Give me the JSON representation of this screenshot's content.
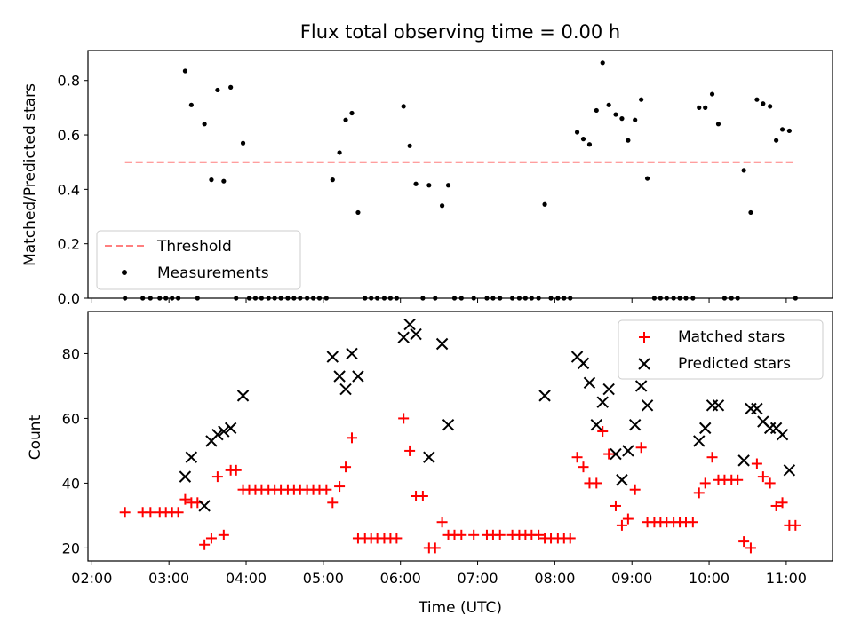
{
  "chart_data": [
    {
      "type": "scatter",
      "title": "Flux total observing time = 0.00 h",
      "xlabel": "",
      "ylabel": "Matched/Predicted stars",
      "xlim_hours": [
        1.95,
        11.6
      ],
      "ylim": [
        0,
        0.91
      ],
      "yticks": [
        0.0,
        0.2,
        0.4,
        0.6,
        0.8
      ],
      "ytick_labels": [
        "0.0",
        "0.2",
        "0.4",
        "0.6",
        "0.8"
      ],
      "legend": {
        "placement": "bottom-left",
        "entries": [
          "Threshold",
          "Measurements"
        ]
      },
      "threshold": {
        "name": "Threshold",
        "value": 0.5,
        "x_range_hours": [
          2.43,
          11.1
        ],
        "color": "#ff7f7f"
      },
      "series": [
        {
          "name": "Measurements",
          "color": "#000000",
          "points": [
            [
              2.43,
              0
            ],
            [
              2.66,
              0
            ],
            [
              2.76,
              0
            ],
            [
              2.88,
              0
            ],
            [
              2.96,
              0
            ],
            [
              3.04,
              0
            ],
            [
              3.12,
              0
            ],
            [
              3.21,
              0.835
            ],
            [
              3.29,
              0.71
            ],
            [
              3.46,
              0.64
            ],
            [
              3.55,
              0.435
            ],
            [
              3.63,
              0.765
            ],
            [
              3.71,
              0.43
            ],
            [
              3.8,
              0.775
            ],
            [
              3.96,
              0.57
            ],
            [
              3.37,
              0
            ],
            [
              3.87,
              0
            ],
            [
              4.04,
              0
            ],
            [
              4.12,
              0
            ],
            [
              4.2,
              0
            ],
            [
              4.29,
              0
            ],
            [
              4.37,
              0
            ],
            [
              4.45,
              0
            ],
            [
              4.54,
              0
            ],
            [
              4.62,
              0
            ],
            [
              4.7,
              0
            ],
            [
              4.79,
              0
            ],
            [
              4.87,
              0
            ],
            [
              4.95,
              0
            ],
            [
              5.04,
              0
            ],
            [
              5.12,
              0.435
            ],
            [
              5.21,
              0.535
            ],
            [
              5.29,
              0.655
            ],
            [
              5.37,
              0.68
            ],
            [
              5.45,
              0.315
            ],
            [
              5.54,
              0
            ],
            [
              5.62,
              0
            ],
            [
              5.7,
              0
            ],
            [
              5.79,
              0
            ],
            [
              5.87,
              0
            ],
            [
              5.95,
              0
            ],
            [
              6.04,
              0.705
            ],
            [
              6.12,
              0.56
            ],
            [
              6.2,
              0.42
            ],
            [
              6.29,
              0
            ],
            [
              6.37,
              0.415
            ],
            [
              6.45,
              0
            ],
            [
              6.54,
              0.34
            ],
            [
              6.62,
              0.415
            ],
            [
              6.7,
              0
            ],
            [
              6.79,
              0
            ],
            [
              6.95,
              0
            ],
            [
              7.12,
              0
            ],
            [
              7.2,
              0
            ],
            [
              7.29,
              0
            ],
            [
              7.45,
              0
            ],
            [
              7.54,
              0
            ],
            [
              7.62,
              0
            ],
            [
              7.7,
              0
            ],
            [
              7.79,
              0
            ],
            [
              7.87,
              0.345
            ],
            [
              7.95,
              0
            ],
            [
              8.04,
              0
            ],
            [
              8.12,
              0
            ],
            [
              8.2,
              0
            ],
            [
              8.29,
              0.61
            ],
            [
              8.37,
              0.585
            ],
            [
              8.45,
              0.565
            ],
            [
              8.54,
              0.69
            ],
            [
              8.62,
              0.865
            ],
            [
              8.7,
              0.71
            ],
            [
              8.79,
              0.675
            ],
            [
              8.87,
              0.66
            ],
            [
              8.95,
              0.58
            ],
            [
              9.04,
              0.655
            ],
            [
              9.12,
              0.73
            ],
            [
              9.2,
              0.44
            ],
            [
              9.29,
              0
            ],
            [
              9.37,
              0
            ],
            [
              9.45,
              0
            ],
            [
              9.54,
              0
            ],
            [
              9.62,
              0
            ],
            [
              9.7,
              0
            ],
            [
              9.79,
              0
            ],
            [
              9.87,
              0.7
            ],
            [
              9.95,
              0.7
            ],
            [
              10.04,
              0.75
            ],
            [
              10.12,
              0.64
            ],
            [
              10.2,
              0
            ],
            [
              10.29,
              0
            ],
            [
              10.37,
              0
            ],
            [
              10.45,
              0.47
            ],
            [
              10.54,
              0.315
            ],
            [
              10.62,
              0.73
            ],
            [
              10.7,
              0.715
            ],
            [
              10.79,
              0.705
            ],
            [
              10.87,
              0.58
            ],
            [
              10.95,
              0.62
            ],
            [
              11.04,
              0.615
            ],
            [
              11.12,
              0
            ]
          ]
        }
      ]
    },
    {
      "type": "scatter",
      "title": "",
      "xlabel": "Time (UTC)",
      "ylabel": "Count",
      "xlim_hours": [
        1.95,
        11.6
      ],
      "ylim": [
        16,
        93
      ],
      "yticks": [
        20,
        40,
        60,
        80
      ],
      "ytick_labels": [
        "20",
        "40",
        "60",
        "80"
      ],
      "xticks_hours": [
        2,
        3,
        4,
        5,
        6,
        7,
        8,
        9,
        10,
        11
      ],
      "xtick_labels": [
        "02:00",
        "03:00",
        "04:00",
        "05:00",
        "06:00",
        "07:00",
        "08:00",
        "09:00",
        "10:00",
        "11:00"
      ],
      "legend": {
        "placement": "top-right",
        "entries": [
          "Matched stars",
          "Predicted stars"
        ]
      },
      "series": [
        {
          "name": "Matched stars",
          "marker": "+",
          "color": "#ff0000",
          "points": [
            [
              2.43,
              31
            ],
            [
              2.66,
              31
            ],
            [
              2.76,
              31
            ],
            [
              2.88,
              31
            ],
            [
              2.96,
              31
            ],
            [
              3.04,
              31
            ],
            [
              3.12,
              31
            ],
            [
              3.21,
              35
            ],
            [
              3.29,
              34
            ],
            [
              3.37,
              34
            ],
            [
              3.46,
              21
            ],
            [
              3.55,
              23
            ],
            [
              3.63,
              42
            ],
            [
              3.71,
              24
            ],
            [
              3.8,
              44
            ],
            [
              3.87,
              44
            ],
            [
              3.96,
              38
            ],
            [
              4.04,
              38
            ],
            [
              4.12,
              38
            ],
            [
              4.2,
              38
            ],
            [
              4.29,
              38
            ],
            [
              4.37,
              38
            ],
            [
              4.45,
              38
            ],
            [
              4.54,
              38
            ],
            [
              4.62,
              38
            ],
            [
              4.7,
              38
            ],
            [
              4.79,
              38
            ],
            [
              4.87,
              38
            ],
            [
              4.95,
              38
            ],
            [
              5.04,
              38
            ],
            [
              5.12,
              34
            ],
            [
              5.21,
              39
            ],
            [
              5.29,
              45
            ],
            [
              5.37,
              54
            ],
            [
              5.45,
              23
            ],
            [
              5.54,
              23
            ],
            [
              5.62,
              23
            ],
            [
              5.7,
              23
            ],
            [
              5.79,
              23
            ],
            [
              5.87,
              23
            ],
            [
              5.95,
              23
            ],
            [
              6.04,
              60
            ],
            [
              6.12,
              50
            ],
            [
              6.2,
              36
            ],
            [
              6.29,
              36
            ],
            [
              6.37,
              20
            ],
            [
              6.45,
              20
            ],
            [
              6.54,
              28
            ],
            [
              6.62,
              24
            ],
            [
              6.7,
              24
            ],
            [
              6.79,
              24
            ],
            [
              6.95,
              24
            ],
            [
              7.12,
              24
            ],
            [
              7.2,
              24
            ],
            [
              7.29,
              24
            ],
            [
              7.45,
              24
            ],
            [
              7.54,
              24
            ],
            [
              7.62,
              24
            ],
            [
              7.7,
              24
            ],
            [
              7.79,
              24
            ],
            [
              7.87,
              23
            ],
            [
              7.95,
              23
            ],
            [
              8.04,
              23
            ],
            [
              8.12,
              23
            ],
            [
              8.2,
              23
            ],
            [
              8.29,
              48
            ],
            [
              8.37,
              45
            ],
            [
              8.45,
              40
            ],
            [
              8.54,
              40
            ],
            [
              8.62,
              56
            ],
            [
              8.7,
              49
            ],
            [
              8.79,
              33
            ],
            [
              8.87,
              27
            ],
            [
              8.95,
              29
            ],
            [
              9.04,
              38
            ],
            [
              9.12,
              51
            ],
            [
              9.2,
              28
            ],
            [
              9.29,
              28
            ],
            [
              9.37,
              28
            ],
            [
              9.45,
              28
            ],
            [
              9.54,
              28
            ],
            [
              9.62,
              28
            ],
            [
              9.7,
              28
            ],
            [
              9.79,
              28
            ],
            [
              9.87,
              37
            ],
            [
              9.95,
              40
            ],
            [
              10.04,
              48
            ],
            [
              10.12,
              41
            ],
            [
              10.2,
              41
            ],
            [
              10.29,
              41
            ],
            [
              10.37,
              41
            ],
            [
              10.45,
              22
            ],
            [
              10.54,
              20
            ],
            [
              10.62,
              46
            ],
            [
              10.7,
              42
            ],
            [
              10.79,
              40
            ],
            [
              10.87,
              33
            ],
            [
              10.95,
              34
            ],
            [
              11.04,
              27
            ],
            [
              11.12,
              27
            ]
          ]
        },
        {
          "name": "Predicted stars",
          "marker": "x",
          "color": "#000000",
          "points": [
            [
              3.21,
              42
            ],
            [
              3.29,
              48
            ],
            [
              3.46,
              33
            ],
            [
              3.55,
              53
            ],
            [
              3.63,
              55
            ],
            [
              3.71,
              56
            ],
            [
              3.8,
              57
            ],
            [
              3.96,
              67
            ],
            [
              5.12,
              79
            ],
            [
              5.21,
              73
            ],
            [
              5.29,
              69
            ],
            [
              5.37,
              80
            ],
            [
              5.45,
              73
            ],
            [
              6.04,
              85
            ],
            [
              6.12,
              89
            ],
            [
              6.2,
              86
            ],
            [
              6.37,
              48
            ],
            [
              6.54,
              83
            ],
            [
              6.62,
              58
            ],
            [
              7.87,
              67
            ],
            [
              8.29,
              79
            ],
            [
              8.37,
              77
            ],
            [
              8.45,
              71
            ],
            [
              8.54,
              58
            ],
            [
              8.62,
              65
            ],
            [
              8.7,
              69
            ],
            [
              8.79,
              49
            ],
            [
              8.87,
              41
            ],
            [
              8.95,
              50
            ],
            [
              9.04,
              58
            ],
            [
              9.12,
              70
            ],
            [
              9.2,
              64
            ],
            [
              9.87,
              53
            ],
            [
              9.95,
              57
            ],
            [
              10.04,
              64
            ],
            [
              10.12,
              64
            ],
            [
              10.45,
              47
            ],
            [
              10.54,
              63
            ],
            [
              10.62,
              63
            ],
            [
              10.7,
              59
            ],
            [
              10.79,
              57
            ],
            [
              10.87,
              57
            ],
            [
              10.95,
              55
            ],
            [
              11.04,
              44
            ]
          ]
        }
      ]
    }
  ]
}
